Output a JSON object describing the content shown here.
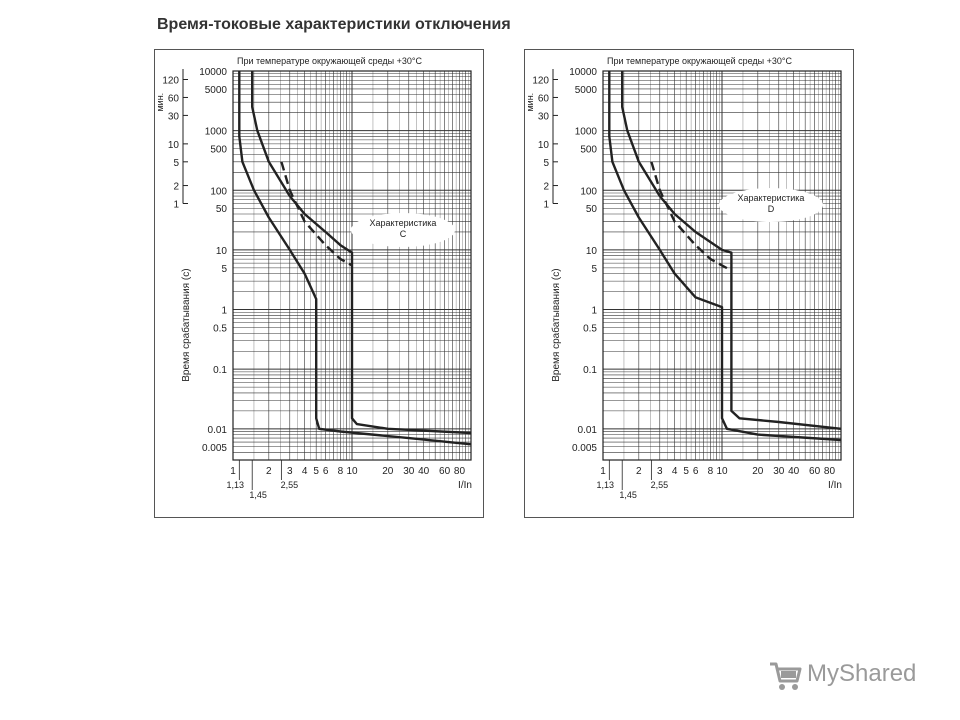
{
  "title": "Время-токовые характеристики отключения",
  "watermark": {
    "text": "MyShared",
    "icon": "shopping-cart-icon"
  },
  "chart_data": [
    {
      "type": "line",
      "top_note": "При температуре окружающей среды +30°C",
      "curve_label": "Характеристика\nC",
      "xlabel": "I/In",
      "ylabel": "Время срабатывания (с)",
      "min_label": "мин.",
      "xscale": "log",
      "yscale": "log",
      "xlim": [
        1,
        100
      ],
      "ylim": [
        0.003,
        10000
      ],
      "x_ticks": [
        "1",
        "2",
        "3",
        "4",
        "5",
        "6",
        "8",
        "10",
        "20",
        "30",
        "40",
        "60",
        "80"
      ],
      "x_special_labels": [
        "1,13",
        "1,45",
        "2,55"
      ],
      "y_ticks": [
        "10000",
        "5000",
        "1000",
        "500",
        "100",
        "50",
        "10",
        "5",
        "1",
        "0.5",
        "0.1",
        "0.01",
        "0.005"
      ],
      "min_ticks": [
        "120",
        "60",
        "30",
        "10",
        "5",
        "2",
        "1"
      ],
      "series": [
        {
          "style": "solid",
          "points": [
            [
              1.13,
              10000
            ],
            [
              1.13,
              800
            ],
            [
              1.2,
              300
            ],
            [
              1.5,
              100
            ],
            [
              2,
              35
            ],
            [
              3,
              10
            ],
            [
              4,
              4
            ],
            [
              5,
              1.5
            ],
            [
              5,
              0.015
            ],
            [
              5.3,
              0.01
            ],
            [
              8,
              0.009
            ],
            [
              30,
              0.007
            ],
            [
              100,
              0.0055
            ]
          ]
        },
        {
          "style": "solid",
          "points": [
            [
              1.45,
              10000
            ],
            [
              1.45,
              2500
            ],
            [
              1.6,
              1000
            ],
            [
              2,
              300
            ],
            [
              3,
              80
            ],
            [
              4,
              40
            ],
            [
              6,
              20
            ],
            [
              8,
              12
            ],
            [
              10,
              9
            ],
            [
              10,
              0.015
            ],
            [
              11,
              0.012
            ],
            [
              20,
              0.01
            ],
            [
              100,
              0.0085
            ]
          ]
        },
        {
          "style": "dashed",
          "points": [
            [
              2.55,
              300
            ],
            [
              3,
              100
            ],
            [
              4,
              30
            ],
            [
              6,
              12
            ],
            [
              8,
              7
            ],
            [
              10,
              5.5
            ]
          ]
        }
      ]
    },
    {
      "type": "line",
      "top_note": "При температуре окружающей среды +30°C",
      "curve_label": "Характеристика\nD",
      "xlabel": "I/In",
      "ylabel": "Время срабатывания (с)",
      "min_label": "мин.",
      "xscale": "log",
      "yscale": "log",
      "xlim": [
        1,
        100
      ],
      "ylim": [
        0.003,
        10000
      ],
      "x_ticks": [
        "1",
        "2",
        "3",
        "4",
        "5",
        "6",
        "8",
        "10",
        "20",
        "30",
        "40",
        "60",
        "80"
      ],
      "x_special_labels": [
        "1,13",
        "1,45",
        "2,55"
      ],
      "y_ticks": [
        "10000",
        "5000",
        "1000",
        "500",
        "100",
        "50",
        "10",
        "5",
        "1",
        "0.5",
        "0.1",
        "0.01",
        "0.005"
      ],
      "min_ticks": [
        "120",
        "60",
        "30",
        "10",
        "5",
        "2",
        "1"
      ],
      "series": [
        {
          "style": "solid",
          "points": [
            [
              1.13,
              10000
            ],
            [
              1.13,
              800
            ],
            [
              1.2,
              300
            ],
            [
              1.5,
              100
            ],
            [
              2,
              35
            ],
            [
              3,
              10
            ],
            [
              4,
              4
            ],
            [
              6,
              1.6
            ],
            [
              10,
              1.1
            ],
            [
              10,
              0.015
            ],
            [
              11,
              0.01
            ],
            [
              20,
              0.008
            ],
            [
              100,
              0.0065
            ]
          ]
        },
        {
          "style": "solid",
          "points": [
            [
              1.45,
              10000
            ],
            [
              1.45,
              2500
            ],
            [
              1.6,
              1000
            ],
            [
              2,
              300
            ],
            [
              3,
              80
            ],
            [
              4,
              40
            ],
            [
              6,
              20
            ],
            [
              10,
              10
            ],
            [
              12,
              9
            ],
            [
              12,
              0.02
            ],
            [
              14,
              0.015
            ],
            [
              30,
              0.013
            ],
            [
              100,
              0.01
            ]
          ]
        },
        {
          "style": "dashed",
          "points": [
            [
              2.55,
              300
            ],
            [
              3,
              100
            ],
            [
              4,
              30
            ],
            [
              6,
              12
            ],
            [
              8,
              7
            ],
            [
              12,
              4.5
            ]
          ]
        }
      ]
    }
  ]
}
